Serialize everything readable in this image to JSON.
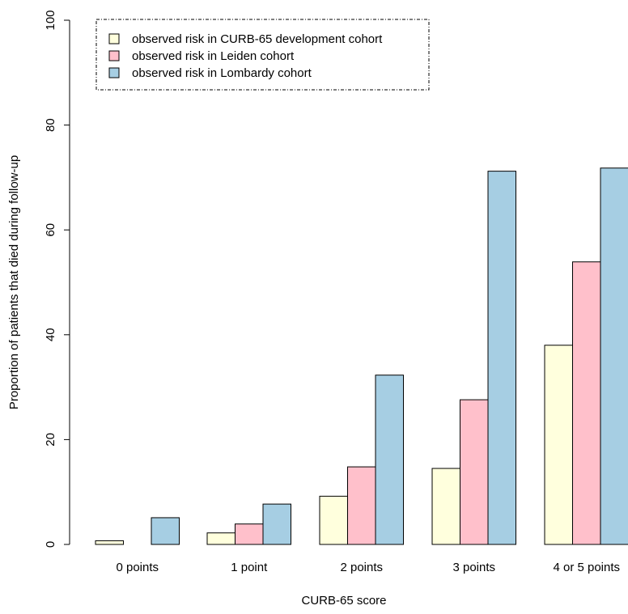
{
  "chart_data": {
    "type": "bar",
    "xlabel": "CURB-65 score",
    "ylabel": "Proportion of patients that died during follow-up",
    "ylim": [
      0,
      100
    ],
    "yticks": [
      0,
      20,
      40,
      60,
      80,
      100
    ],
    "grid": false,
    "legend_position": "top-left",
    "categories": [
      "0 points",
      "1 point",
      "2 points",
      "3 points",
      "4 or 5 points"
    ],
    "series": [
      {
        "name": "observed risk in CURB-65 development cohort",
        "color": "#FFFFDD",
        "values": [
          0.7,
          2.2,
          9.2,
          14.5,
          38
        ]
      },
      {
        "name": "observed risk in Leiden cohort",
        "color": "#FFC0CB",
        "values": [
          0.0,
          3.9,
          14.8,
          27.6,
          53.9
        ]
      },
      {
        "name": "observed risk in Lombardy cohort",
        "color": "#A6CEE3",
        "values": [
          5.1,
          7.7,
          32.3,
          71.2,
          71.8
        ]
      }
    ]
  }
}
